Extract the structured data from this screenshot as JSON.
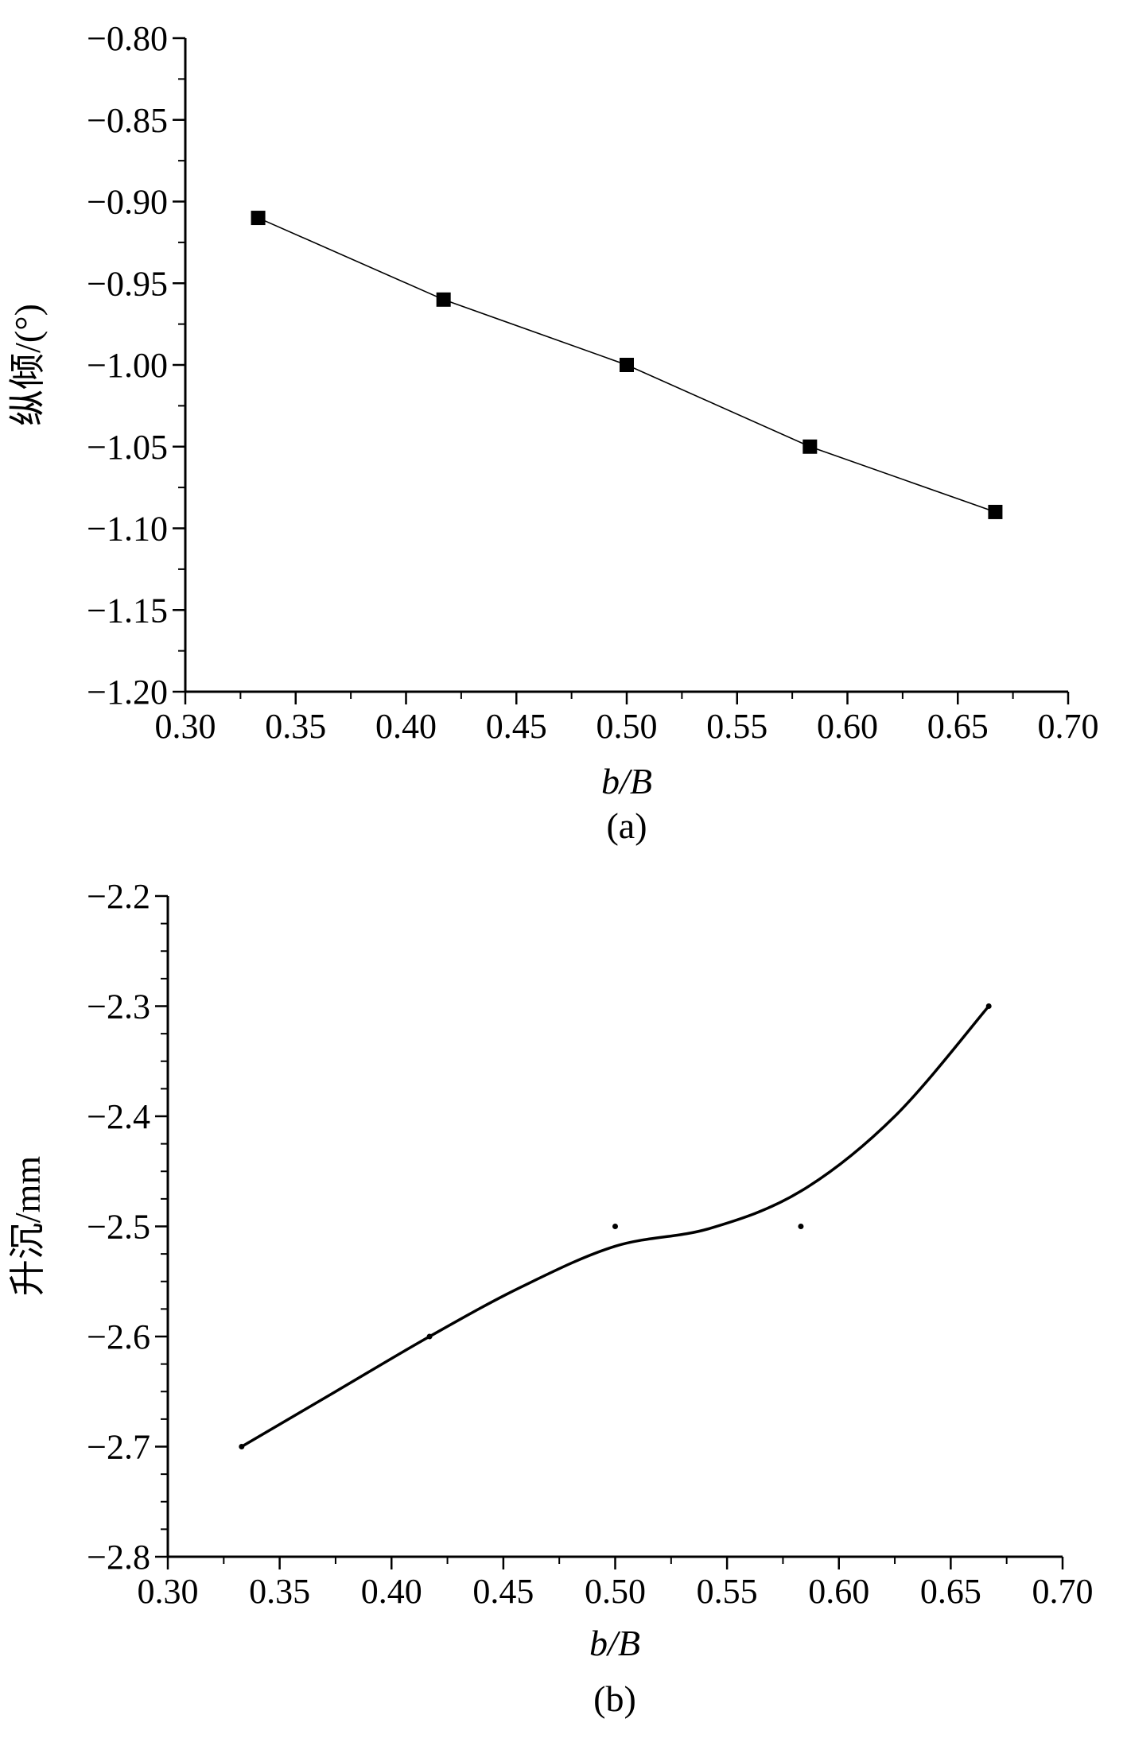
{
  "chart_data": [
    {
      "type": "line",
      "caption": "(a)",
      "xlabel": "b/B",
      "ylabel": "纵倾/(°)",
      "xlim": [
        0.3,
        0.7
      ],
      "ylim": [
        -1.2,
        -0.8
      ],
      "x_ticks": [
        "0.30",
        "0.35",
        "0.40",
        "0.45",
        "0.50",
        "0.55",
        "0.60",
        "0.65",
        "0.70"
      ],
      "y_ticks": [
        "-0.80",
        "-0.85",
        "-0.90",
        "-0.95",
        "-1.00",
        "-1.05",
        "-1.10",
        "-1.15",
        "-1.20"
      ],
      "marker": "square",
      "line_style": "straight",
      "grid": false,
      "legend": "none",
      "series": [
        {
          "points": [
            {
              "x": 0.333,
              "y": -0.91
            },
            {
              "x": 0.417,
              "y": -0.96
            },
            {
              "x": 0.5,
              "y": -1.0
            },
            {
              "x": 0.583,
              "y": -1.05
            },
            {
              "x": 0.667,
              "y": -1.09
            }
          ]
        }
      ]
    },
    {
      "type": "line",
      "caption": "(b)",
      "xlabel": "b/B",
      "ylabel": "升沉/mm",
      "xlim": [
        0.3,
        0.7
      ],
      "ylim": [
        -2.8,
        -2.2
      ],
      "x_ticks": [
        "0.30",
        "0.35",
        "0.40",
        "0.45",
        "0.50",
        "0.55",
        "0.60",
        "0.65",
        "0.70"
      ],
      "y_ticks": [
        "-2.2",
        "-2.3",
        "-2.4",
        "-2.5",
        "-2.6",
        "-2.7",
        "-2.8"
      ],
      "marker": "dot",
      "line_style": "smooth fitted curve",
      "grid": false,
      "legend": "none",
      "series": [
        {
          "points": [
            {
              "x": 0.333,
              "y": -2.7
            },
            {
              "x": 0.417,
              "y": -2.6
            },
            {
              "x": 0.5,
              "y": -2.5
            },
            {
              "x": 0.583,
              "y": -2.5
            },
            {
              "x": 0.667,
              "y": -2.3
            }
          ],
          "fit_curve": [
            {
              "x": 0.333,
              "y": -2.7
            },
            {
              "x": 0.375,
              "y": -2.65
            },
            {
              "x": 0.417,
              "y": -2.6
            },
            {
              "x": 0.458,
              "y": -2.555
            },
            {
              "x": 0.5,
              "y": -2.518
            },
            {
              "x": 0.542,
              "y": -2.502
            },
            {
              "x": 0.583,
              "y": -2.468
            },
            {
              "x": 0.625,
              "y": -2.4
            },
            {
              "x": 0.667,
              "y": -2.3
            }
          ]
        }
      ]
    }
  ]
}
